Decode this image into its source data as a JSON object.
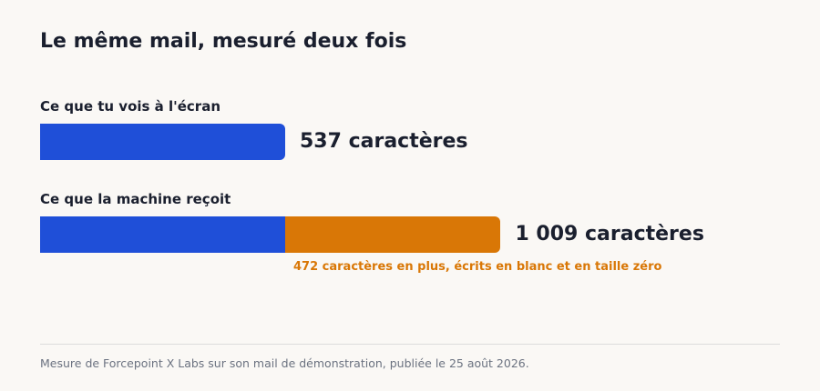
{
  "chart_data": {
    "type": "bar",
    "orientation": "horizontal",
    "stacked": true,
    "title": "Le même mail, mesuré deux fois",
    "categories": [
      "Ce que tu vois à l'écran",
      "Ce que la machine reçoit"
    ],
    "series": [
      {
        "values": [
          537,
          537
        ]
      },
      {
        "values": [
          0,
          472
        ]
      }
    ],
    "totals": [
      537,
      1009
    ],
    "value_labels": [
      "537 caractères",
      "1 009 caractères"
    ],
    "annotation": "472 caractères en plus, écrits en blanc et en taille zéro",
    "source": "Mesure de Forcepoint X Labs sur son mail de démonstration, publiée le 25 août 2026.",
    "xlim": [
      0,
      1009
    ],
    "grid": false,
    "colors": {
      "visible": "#1f4fd8",
      "hidden": "#d97706",
      "text": "#1a1f2e",
      "muted": "#6b7280"
    }
  }
}
